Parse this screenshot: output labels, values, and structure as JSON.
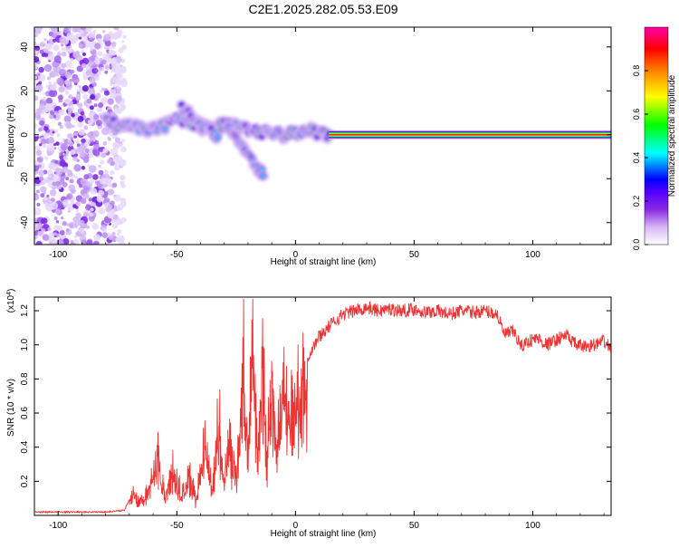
{
  "title": "C2E1.2025.282.05.53.E09",
  "colors": {
    "snr_line": "#ee3333",
    "spectrogram_background": "#ffffff"
  },
  "chart_data": [
    {
      "type": "heatmap",
      "xlabel": "Height of straight line (km)",
      "ylabel": "Frequency (Hz)",
      "xlim": [
        -110,
        133
      ],
      "ylim": [
        -50,
        49
      ],
      "x_ticks": [
        -100,
        -50,
        0,
        50,
        100
      ],
      "y_ticks": [
        40,
        20,
        0,
        -20,
        -40
      ],
      "colorbar": {
        "label": "Normalized spectral amplitude",
        "range": [
          0,
          1
        ],
        "ticks": [
          0.0,
          0.2,
          0.4,
          0.6,
          0.8
        ],
        "colormap": [
          "#ffffff",
          "#d6b8f5",
          "#8a2be2",
          "#5500ff",
          "#0000ff",
          "#00ffff",
          "#00ff00",
          "#ffff00",
          "#ff8000",
          "#ff0000",
          "#ff00aa"
        ]
      },
      "noise_region": {
        "x": [
          -110,
          -78
        ],
        "y": [
          -50,
          49
        ]
      },
      "ridges": [
        {
          "x": [
            -80,
            -75,
            -70,
            -65,
            -60,
            -55,
            -50,
            -45,
            -40,
            -35,
            -30,
            -25,
            -20,
            -15,
            -10,
            -5,
            0,
            5,
            10,
            15
          ],
          "y": [
            7,
            4,
            4,
            3,
            2,
            4,
            8,
            6,
            4,
            2,
            5,
            4,
            2,
            1,
            1,
            0,
            1,
            2,
            1,
            0
          ]
        },
        {
          "x": [
            -48,
            -42,
            -36,
            -32
          ],
          "y": [
            12,
            7,
            2,
            -4
          ]
        },
        {
          "x": [
            -28,
            -24,
            -20,
            -16,
            -13
          ],
          "y": [
            3,
            -3,
            -9,
            -15,
            -19
          ]
        }
      ],
      "carrier_line": {
        "x": [
          14,
          133
        ],
        "y": 0
      }
    },
    {
      "type": "line",
      "xlabel": "Height of straight line (km)",
      "ylabel": "SNR (10 * v/v)",
      "y_multiplier": "(x10^4)",
      "xlim": [
        -110,
        133
      ],
      "ylim": [
        0,
        1.28
      ],
      "x_ticks": [
        -100,
        -50,
        0,
        50,
        100
      ],
      "y_ticks": [
        0.2,
        0.4,
        0.6,
        0.8,
        1.0,
        1.2
      ],
      "series": [
        {
          "x": [
            -110,
            -100,
            -90,
            -80,
            -72,
            -68,
            -66,
            -62,
            -58,
            -55,
            -52,
            -48,
            -45,
            -42,
            -38,
            -35,
            -32,
            -30,
            -28,
            -25,
            -22,
            -20,
            -18,
            -16,
            -14,
            -12,
            -10,
            -8,
            -5,
            -2,
            0,
            3,
            6,
            10,
            15,
            20,
            25,
            30,
            35,
            40,
            45,
            50,
            55,
            60,
            65,
            70,
            75,
            80,
            85,
            88,
            92,
            95,
            98,
            102,
            106,
            110,
            114,
            118,
            122,
            126,
            130,
            133
          ],
          "y": [
            0.02,
            0.02,
            0.02,
            0.02,
            0.03,
            0.16,
            0.08,
            0.14,
            0.4,
            0.1,
            0.3,
            0.12,
            0.28,
            0.1,
            0.45,
            0.15,
            0.6,
            0.2,
            0.5,
            0.25,
            0.95,
            0.3,
            1.1,
            0.35,
            0.95,
            0.4,
            0.85,
            0.5,
            0.8,
            0.6,
            0.75,
            0.85,
            0.95,
            1.05,
            1.12,
            1.18,
            1.2,
            1.22,
            1.2,
            1.21,
            1.2,
            1.21,
            1.19,
            1.2,
            1.18,
            1.2,
            1.19,
            1.2,
            1.18,
            1.06,
            1.08,
            0.99,
            1.02,
            1.04,
            1.0,
            1.03,
            1.06,
            1.0,
            0.99,
            1.0,
            1.02,
            0.98
          ]
        }
      ]
    }
  ]
}
